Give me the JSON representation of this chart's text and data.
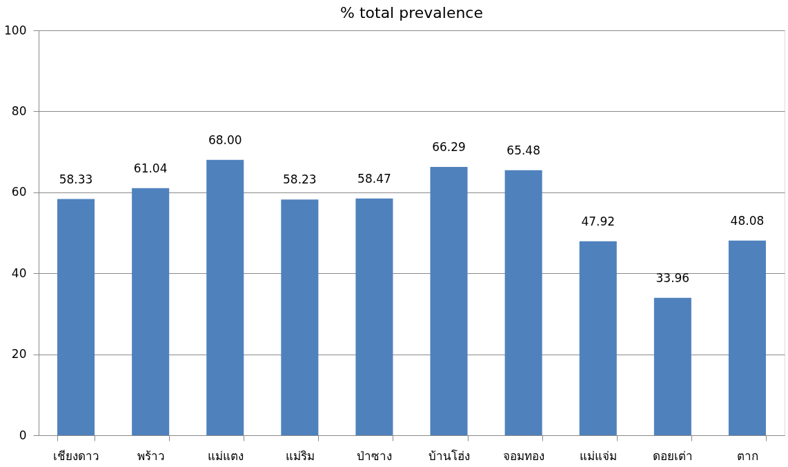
{
  "chart_data": {
    "type": "bar",
    "title": "% total prevalence",
    "categories": [
      "เชียงดาว",
      "พร้าว",
      "แม่แตง",
      "แม่ริม",
      "ป่าซาง",
      "บ้านโฮ่ง",
      "จอมทอง",
      "แม่แจ่ม",
      "ดอยเต่า",
      "ตาก"
    ],
    "values": [
      58.33,
      61.04,
      68.0,
      58.23,
      58.47,
      66.29,
      65.48,
      47.92,
      33.96,
      48.08
    ],
    "value_labels": [
      "58.33",
      "61.04",
      "68.00",
      "58.23",
      "58.47",
      "66.29",
      "65.48",
      "47.92",
      "33.96",
      "48.08"
    ],
    "color": "#4f81bd",
    "ylim": [
      0,
      100
    ],
    "yticks": [
      0,
      20,
      40,
      60,
      80,
      100
    ],
    "grid": "y"
  }
}
